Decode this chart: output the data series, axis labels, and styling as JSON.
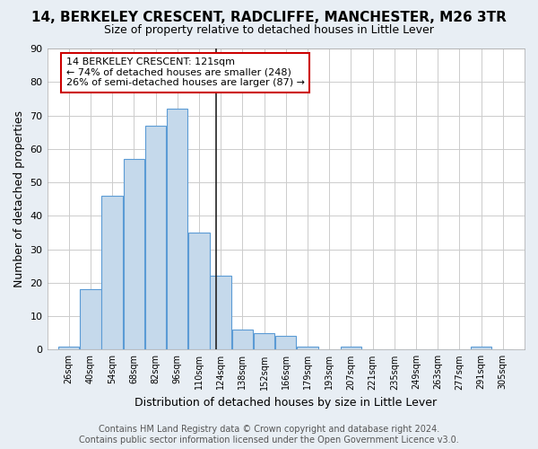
{
  "title_line1": "14, BERKELEY CRESCENT, RADCLIFFE, MANCHESTER, M26 3TR",
  "title_line2": "Size of property relative to detached houses in Little Lever",
  "xlabel": "Distribution of detached houses by size in Little Lever",
  "ylabel": "Number of detached properties",
  "categories": [
    "26sqm",
    "40sqm",
    "54sqm",
    "68sqm",
    "82sqm",
    "96sqm",
    "110sqm",
    "124sqm",
    "138sqm",
    "152sqm",
    "166sqm",
    "179sqm",
    "193sqm",
    "207sqm",
    "221sqm",
    "235sqm",
    "249sqm",
    "263sqm",
    "277sqm",
    "291sqm",
    "305sqm"
  ],
  "bar_heights": [
    1,
    18,
    46,
    57,
    67,
    72,
    35,
    22,
    6,
    5,
    4,
    1,
    0,
    1,
    0,
    0,
    0,
    0,
    0,
    1,
    0
  ],
  "bar_color": "#c5d9eb",
  "bar_edge_color": "#5b9bd5",
  "vline_x": 121,
  "vline_color": "#222222",
  "annotation_line1": "14 BERKELEY CRESCENT: 121sqm",
  "annotation_line2": "← 74% of detached houses are smaller (248)",
  "annotation_line3": "26% of semi-detached houses are larger (87) →",
  "box_edge_color": "#cc0000",
  "ylim": [
    0,
    90
  ],
  "yticks": [
    0,
    10,
    20,
    30,
    40,
    50,
    60,
    70,
    80,
    90
  ],
  "footer_line1": "Contains HM Land Registry data © Crown copyright and database right 2024.",
  "footer_line2": "Contains public sector information licensed under the Open Government Licence v3.0.",
  "bg_color": "#e8eef4",
  "plot_bg_color": "#ffffff",
  "grid_color": "#cccccc",
  "title_fontsize": 11,
  "subtitle_fontsize": 9,
  "xlabel_fontsize": 9,
  "ylabel_fontsize": 9,
  "tick_fontsize": 8,
  "footer_fontsize": 7
}
